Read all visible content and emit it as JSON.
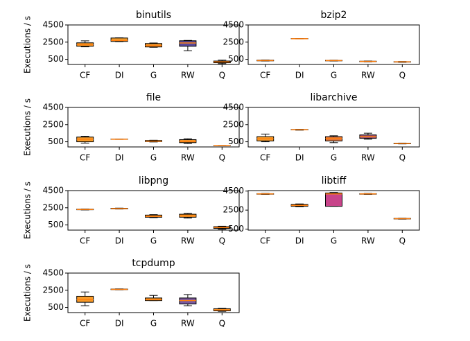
{
  "chart_data": [
    {
      "type": "box",
      "title": "binutils",
      "ylabel": "Executions / s",
      "categories": [
        "CF",
        "DI",
        "G",
        "RW",
        "Q"
      ],
      "boxes": [
        {
          "min": 1950,
          "q1": 2020,
          "median": 2200,
          "q3": 2420,
          "max": 2650
        },
        {
          "min": 2550,
          "q1": 2580,
          "median": 2700,
          "q3": 2980,
          "max": 3000
        },
        {
          "min": 1900,
          "q1": 1940,
          "median": 2100,
          "q3": 2340,
          "max": 2400
        },
        {
          "min": 1500,
          "q1": 2020,
          "median": 2400,
          "q3": 2660,
          "max": 2700
        },
        {
          "min": 0,
          "q1": 100,
          "median": 200,
          "q3": 300,
          "max": 400
        }
      ],
      "colors": [
        "#f79c2a",
        "#f0a030",
        "#f0962c",
        "#5a4a9c",
        "#f39a2c"
      ],
      "ylim": [
        -100,
        4500
      ],
      "yticks": [
        500,
        2500,
        4500
      ]
    },
    {
      "type": "box",
      "title": "bzip2",
      "categories": [
        "CF",
        "DI",
        "G",
        "RW",
        "Q"
      ],
      "boxes": [
        {
          "min": 300,
          "q1": 320,
          "median": 350,
          "q3": 400,
          "max": 420
        },
        {
          "min": 2880,
          "q1": 2890,
          "median": 2900,
          "q3": 2910,
          "max": 2920
        },
        {
          "min": 300,
          "q1": 320,
          "median": 350,
          "q3": 380,
          "max": 400
        },
        {
          "min": 200,
          "q1": 220,
          "median": 250,
          "q3": 280,
          "max": 300
        },
        {
          "min": 150,
          "q1": 170,
          "median": 200,
          "q3": 230,
          "max": 250
        }
      ],
      "colors": [
        "#f79c2a",
        "#f79c2a",
        "#f79c2a",
        "#f79c2a",
        "#f79c2a"
      ],
      "ylim": [
        -100,
        4500
      ],
      "yticks": [
        500,
        2500,
        4500
      ]
    },
    {
      "type": "box",
      "title": "file",
      "ylabel": "Executions / s",
      "categories": [
        "CF",
        "DI",
        "G",
        "RW",
        "Q"
      ],
      "boxes": [
        {
          "min": 350,
          "q1": 500,
          "median": 800,
          "q3": 1050,
          "max": 1150
        },
        {
          "min": 780,
          "q1": 790,
          "median": 800,
          "q3": 820,
          "max": 830
        },
        {
          "min": 480,
          "q1": 520,
          "median": 580,
          "q3": 650,
          "max": 680
        },
        {
          "min": 300,
          "q1": 400,
          "median": 550,
          "q3": 750,
          "max": 850
        },
        {
          "min": 30,
          "q1": 40,
          "median": 50,
          "q3": 60,
          "max": 70
        }
      ],
      "colors": [
        "#f79c2a",
        "#f79c2a",
        "#f79c2a",
        "#f0962c",
        "#f79c2a"
      ],
      "ylim": [
        -100,
        4500
      ],
      "yticks": [
        500,
        2500,
        4500
      ]
    },
    {
      "type": "box",
      "title": "libarchive",
      "categories": [
        "CF",
        "DI",
        "G",
        "RW",
        "Q"
      ],
      "boxes": [
        {
          "min": 500,
          "q1": 600,
          "median": 850,
          "q3": 1100,
          "max": 1400
        },
        {
          "min": 1850,
          "q1": 1880,
          "median": 1900,
          "q3": 1930,
          "max": 1950
        },
        {
          "min": 400,
          "q1": 600,
          "median": 900,
          "q3": 1100,
          "max": 1200
        },
        {
          "min": 800,
          "q1": 900,
          "median": 1100,
          "q3": 1300,
          "max": 1500
        },
        {
          "min": 250,
          "q1": 270,
          "median": 300,
          "q3": 330,
          "max": 350
        }
      ],
      "colors": [
        "#f79c2a",
        "#f79c2a",
        "#e0753c",
        "#a0506e",
        "#f79c2a"
      ],
      "ylim": [
        -100,
        4500
      ],
      "yticks": [
        500,
        2500,
        4500
      ]
    },
    {
      "type": "box",
      "title": "libpng",
      "ylabel": "Executions / s",
      "categories": [
        "CF",
        "DI",
        "G",
        "RW",
        "Q"
      ],
      "boxes": [
        {
          "min": 2250,
          "q1": 2270,
          "median": 2300,
          "q3": 2340,
          "max": 2360
        },
        {
          "min": 2350,
          "q1": 2370,
          "median": 2400,
          "q3": 2440,
          "max": 2460
        },
        {
          "min": 1350,
          "q1": 1400,
          "median": 1500,
          "q3": 1650,
          "max": 1700
        },
        {
          "min": 1300,
          "q1": 1400,
          "median": 1550,
          "q3": 1750,
          "max": 1850
        },
        {
          "min": 0,
          "q1": 100,
          "median": 200,
          "q3": 300,
          "max": 350
        }
      ],
      "colors": [
        "#f79c2a",
        "#f79c2a",
        "#f79c2a",
        "#f79c2a",
        "#f79c2a"
      ],
      "ylim": [
        -100,
        4500
      ],
      "yticks": [
        500,
        2500,
        4500
      ]
    },
    {
      "type": "box",
      "title": "libtiff",
      "categories": [
        "CF",
        "DI",
        "G",
        "RW",
        "Q"
      ],
      "boxes": [
        {
          "min": 4150,
          "q1": 4170,
          "median": 4200,
          "q3": 4230,
          "max": 4250
        },
        {
          "min": 2850,
          "q1": 2900,
          "median": 3000,
          "q3": 3100,
          "max": 3150
        },
        {
          "min": 2900,
          "q1": 2900,
          "median": 4200,
          "q3": 4300,
          "max": 4350
        },
        {
          "min": 4150,
          "q1": 4170,
          "median": 4200,
          "q3": 4230,
          "max": 4250
        },
        {
          "min": 1550,
          "q1": 1570,
          "median": 1600,
          "q3": 1630,
          "max": 1650
        }
      ],
      "colors": [
        "#f79c2a",
        "#f79c2a",
        "#c8448a",
        "#f79c2a",
        "#f79c2a"
      ],
      "ylim": [
        400,
        4550
      ],
      "yticks": [
        500,
        2500,
        4500
      ]
    },
    {
      "type": "box",
      "title": "tcpdump",
      "ylabel": "Executions / s",
      "categories": [
        "CF",
        "DI",
        "G",
        "RW",
        "Q"
      ],
      "boxes": [
        {
          "min": 700,
          "q1": 1100,
          "median": 1400,
          "q3": 1800,
          "max": 2300
        },
        {
          "min": 2550,
          "q1": 2570,
          "median": 2600,
          "q3": 2640,
          "max": 2660
        },
        {
          "min": 1300,
          "q1": 1300,
          "median": 1400,
          "q3": 1600,
          "max": 1900
        },
        {
          "min": 700,
          "q1": 900,
          "median": 1300,
          "q3": 1600,
          "max": 2000
        },
        {
          "min": 50,
          "q1": 100,
          "median": 200,
          "q3": 350,
          "max": 400
        }
      ],
      "colors": [
        "#f79c2a",
        "#f79c2a",
        "#f79c2a",
        "#7a5aa0",
        "#f79c2a"
      ],
      "ylim": [
        -100,
        4500
      ],
      "yticks": [
        500,
        2500,
        4500
      ]
    }
  ]
}
